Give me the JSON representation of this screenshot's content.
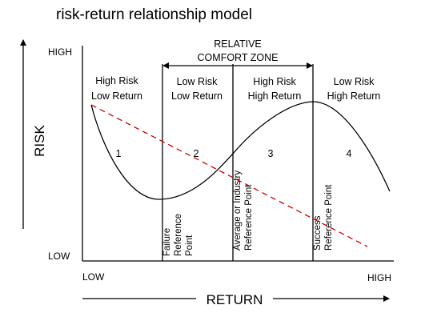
{
  "title": "risk-return relationship model",
  "comfort_zone": {
    "line1": "RELATIVE",
    "line2": "COMFORT ZONE"
  },
  "zones": [
    {
      "number": "1",
      "line1": "High Risk",
      "line2": "Low Return"
    },
    {
      "number": "2",
      "line1": "Low Risk",
      "line2": "Low Return"
    },
    {
      "number": "3",
      "line1": "High Risk",
      "line2": "High Return"
    },
    {
      "number": "4",
      "line1": "Low Risk",
      "line2": "High Return"
    }
  ],
  "reference_points": [
    {
      "line1": "Failure",
      "line2": "Reference",
      "line3": "Point"
    },
    {
      "line1": "Average or Industry",
      "line2": "Reference Point"
    },
    {
      "line1": "Success",
      "line2": "Reference Point"
    }
  ],
  "y_axis": {
    "label": "RISK",
    "high": "HIGH",
    "low": "LOW"
  },
  "x_axis": {
    "label": "RETURN",
    "low": "LOW",
    "high": "HIGH"
  },
  "colors": {
    "line": "#000000",
    "trend": "#cc0000",
    "background": "#ffffff"
  }
}
